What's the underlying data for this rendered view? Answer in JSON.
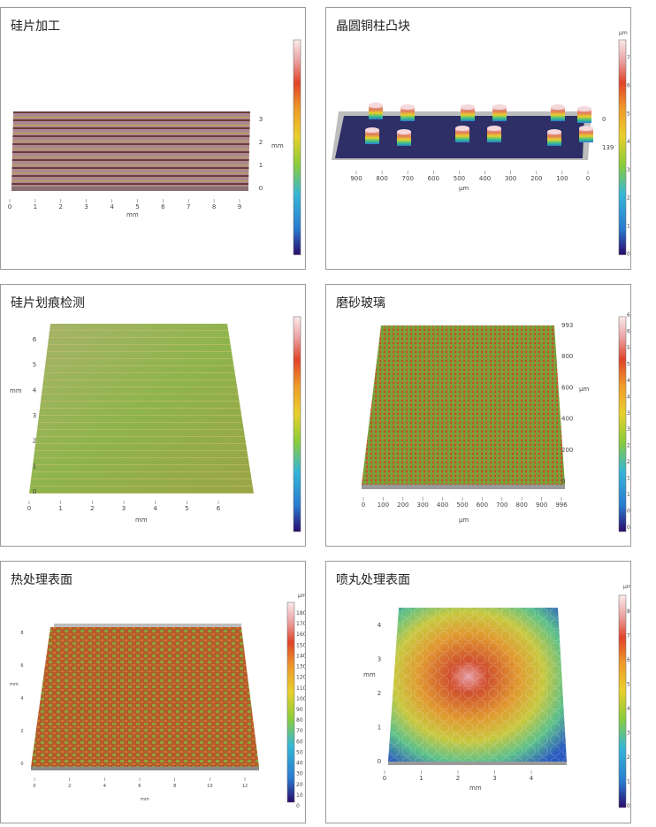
{
  "colors": {
    "scale": [
      "#2a0a6a",
      "#1c3aa0",
      "#2a7ad0",
      "#36b6d6",
      "#38c08a",
      "#8ccc3a",
      "#e8d02c",
      "#ef9a2a",
      "#e0442a",
      "#c8342a",
      "#eaa0a0",
      "#fbeaea"
    ],
    "surface_green": "#7fb03a",
    "surface_red": "#c44e2a",
    "pillar_base": "#2d2f66"
  },
  "panels": [
    {
      "title": "硅片加工",
      "scale_unit": "",
      "scale_ticks": [],
      "axis_x": {
        "ticks": [
          "0",
          "1",
          "2",
          "3",
          "4",
          "5",
          "6",
          "7",
          "8",
          "9"
        ],
        "label": "mm"
      },
      "axis_y": {
        "ticks": [
          "0",
          "1",
          "2",
          "3"
        ],
        "label": "mm"
      }
    },
    {
      "title": "晶圆铜柱凸块",
      "scale_unit": "μm",
      "scale_ticks": [
        "70",
        "60",
        "50",
        "40",
        "30",
        "20",
        "10",
        "0"
      ],
      "axis_x": {
        "ticks": [
          "900",
          "800",
          "700",
          "600",
          "500",
          "400",
          "300",
          "200",
          "100",
          "0"
        ],
        "label": "μm"
      },
      "axis_y": {
        "ticks": [
          "0",
          "139"
        ]
      }
    },
    {
      "title": "硅片划痕检测",
      "scale_unit": "",
      "scale_ticks": [],
      "axis_x": {
        "ticks": [
          "0",
          "1",
          "2",
          "3",
          "4",
          "5",
          "6"
        ],
        "label": "mm"
      },
      "axis_y": {
        "ticks": [
          "0",
          "1",
          "2",
          "3",
          "4",
          "5",
          "6"
        ],
        "label": "mm"
      }
    },
    {
      "title": "磨砂玻璃",
      "scale_unit": "",
      "scale_ticks": [
        "6.592",
        "6.0",
        "5.5",
        "5.0",
        "4.5",
        "4.0",
        "3.5",
        "3.0",
        "2.5",
        "2.0",
        "1.5",
        "1.0",
        "0.5",
        "0.0"
      ],
      "axis_x": {
        "ticks": [
          "0",
          "100",
          "200",
          "300",
          "400",
          "500",
          "600",
          "700",
          "800",
          "900",
          "996"
        ],
        "label": "μm"
      },
      "axis_y": {
        "ticks": [
          "993",
          "800",
          "600",
          "400",
          "200",
          "0"
        ],
        "label": "μm"
      }
    },
    {
      "title": "热处理表面",
      "scale_unit": "μm",
      "scale_ticks": [
        "180",
        "170",
        "160",
        "150",
        "140",
        "130",
        "120",
        "110",
        "100",
        "90",
        "80",
        "70",
        "60",
        "50",
        "40",
        "30",
        "20",
        "10",
        "0"
      ],
      "axis_x": {
        "ticks": [
          "0",
          "2",
          "4",
          "6",
          "8",
          "10",
          "12"
        ],
        "label": "mm"
      },
      "axis_y": {
        "ticks": [
          "0",
          "2",
          "4",
          "6",
          "8"
        ],
        "label": "mm"
      }
    },
    {
      "title": "喷丸处理表面",
      "scale_unit": "μm",
      "scale_ticks": [
        "80",
        "70",
        "60",
        "50",
        "40",
        "30",
        "20",
        "10",
        "0"
      ],
      "axis_x": {
        "ticks": [
          "0",
          "1",
          "2",
          "3",
          "4"
        ],
        "label": "mm"
      },
      "axis_y": {
        "ticks": [
          "0",
          "1",
          "2",
          "3",
          "4"
        ],
        "label": "mm"
      }
    }
  ]
}
